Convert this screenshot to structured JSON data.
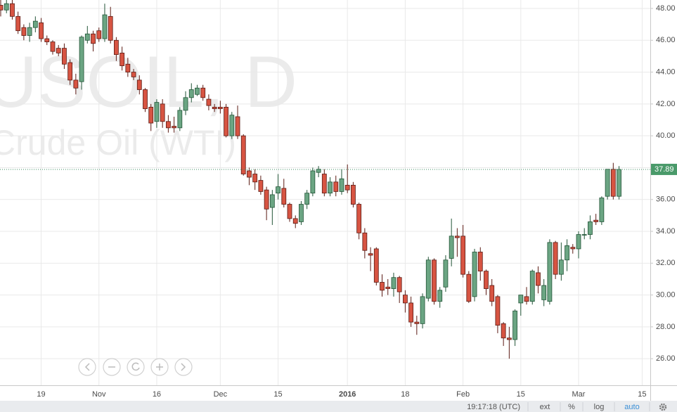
{
  "chart_data": {
    "type": "candlestick",
    "watermark_symbol": "USOIL, D",
    "watermark_name": "Crude Oil (WTI)",
    "categories": [
      null,
      null,
      null,
      null,
      null,
      null,
      null,
      "19",
      null,
      null,
      null,
      null,
      null,
      null,
      null,
      null,
      null,
      "Nov",
      null,
      null,
      null,
      null,
      null,
      null,
      null,
      null,
      null,
      "16",
      null,
      null,
      null,
      null,
      null,
      null,
      null,
      null,
      null,
      null,
      "Dec",
      null,
      null,
      null,
      null,
      null,
      null,
      null,
      null,
      null,
      "15",
      null,
      null,
      null,
      null,
      null,
      null,
      null,
      null,
      null,
      null,
      null,
      "2016",
      null,
      null,
      null,
      null,
      null,
      null,
      null,
      null,
      null,
      "18",
      null,
      null,
      null,
      null,
      null,
      null,
      null,
      null,
      null,
      "Feb",
      null,
      null,
      null,
      null,
      null,
      null,
      null,
      null,
      null,
      "15",
      null,
      null,
      null,
      null,
      null,
      null,
      null,
      null,
      null,
      "Mar",
      null,
      null,
      null,
      null,
      null,
      null,
      null,
      null,
      null,
      null,
      "15"
    ],
    "open": [
      48.2,
      47.9,
      48.3,
      47.5,
      46.8,
      46.3,
      46.8,
      47.1,
      46.1,
      45.9,
      45.5,
      45.5,
      44.6,
      43.5,
      43.4,
      46.0,
      46.4,
      46.6,
      46.1,
      47.5,
      46.0,
      45.2,
      44.5,
      44.0,
      43.5,
      42.9,
      41.8,
      40.9,
      42.0,
      40.9,
      40.6,
      40.5,
      41.6,
      42.4,
      42.6,
      43.0,
      42.3,
      41.8,
      41.8,
      41.8,
      40.0,
      41.2,
      40.0,
      37.8,
      37.6,
      37.2,
      36.6,
      35.5,
      36.4,
      36.7,
      35.7,
      34.8,
      34.6,
      35.7,
      36.4,
      37.7,
      37.6,
      36.4,
      37.1,
      36.5,
      36.9,
      36.9,
      35.7,
      33.9,
      32.6,
      32.9,
      30.8,
      30.5,
      30.4,
      31.1,
      30.0,
      29.5,
      28.3,
      28.2,
      29.8,
      32.2,
      29.6,
      30.5,
      32.3,
      33.7,
      33.7,
      31.3,
      29.9,
      32.7,
      31.5,
      30.6,
      29.9,
      28.2,
      27.3,
      27.2,
      29.5,
      29.9,
      29.6,
      31.4,
      29.7,
      29.6,
      33.3,
      31.3,
      32.2,
      33.0,
      32.9,
      33.8,
      33.8,
      34.7,
      34.6,
      36.2,
      37.9,
      36.2,
      null,
      null,
      null,
      null
    ],
    "high": [
      48.6,
      48.6,
      48.6,
      47.8,
      47.0,
      47.1,
      47.5,
      47.4,
      46.3,
      46.0,
      45.7,
      45.8,
      44.8,
      43.9,
      46.3,
      46.9,
      46.6,
      46.8,
      48.3,
      48.1,
      46.2,
      45.6,
      44.9,
      44.2,
      43.8,
      43.0,
      42.0,
      42.3,
      42.3,
      41.3,
      41.2,
      41.8,
      42.8,
      43.3,
      43.2,
      43.2,
      42.6,
      42.0,
      42.2,
      42.0,
      41.5,
      41.9,
      40.1,
      38.0,
      37.9,
      37.5,
      36.8,
      36.6,
      37.6,
      37.3,
      35.8,
      35.0,
      35.9,
      36.6,
      38.0,
      38.1,
      37.9,
      37.4,
      37.5,
      37.9,
      38.2,
      37.1,
      35.8,
      34.2,
      33.0,
      33.0,
      31.3,
      31.0,
      31.4,
      31.2,
      30.3,
      29.9,
      28.7,
      30.1,
      32.4,
      32.3,
      30.5,
      32.5,
      34.8,
      34.2,
      34.4,
      31.5,
      32.9,
      33.0,
      31.6,
      31.0,
      30.0,
      28.3,
      28.0,
      29.1,
      30.0,
      30.5,
      31.6,
      31.8,
      31.0,
      33.5,
      33.4,
      33.3,
      33.5,
      33.2,
      34.0,
      34.2,
      35.0,
      35.1,
      36.2,
      37.9,
      38.3,
      38.1,
      null,
      null,
      null,
      null
    ],
    "low": [
      47.5,
      47.7,
      47.3,
      46.4,
      46.0,
      45.9,
      46.5,
      45.9,
      45.7,
      45.1,
      45.0,
      44.2,
      43.2,
      42.6,
      42.9,
      45.8,
      45.3,
      45.9,
      45.9,
      45.8,
      44.7,
      44.1,
      43.7,
      43.5,
      42.6,
      41.5,
      40.3,
      40.5,
      40.5,
      40.2,
      40.2,
      40.3,
      41.3,
      42.1,
      42.5,
      42.2,
      41.6,
      41.5,
      41.4,
      39.9,
      39.8,
      39.8,
      37.5,
      36.9,
      36.6,
      36.3,
      34.7,
      34.4,
      36.0,
      35.5,
      34.6,
      34.2,
      34.4,
      35.4,
      36.2,
      37.4,
      36.2,
      36.2,
      36.2,
      36.3,
      36.4,
      35.5,
      33.5,
      32.3,
      31.5,
      30.6,
      29.9,
      30.0,
      29.9,
      29.5,
      28.9,
      28.0,
      27.5,
      27.9,
      29.6,
      29.4,
      29.2,
      30.2,
      31.8,
      32.4,
      31.1,
      29.5,
      29.6,
      30.9,
      30.0,
      29.3,
      27.6,
      26.8,
      26.0,
      26.8,
      28.7,
      29.4,
      29.4,
      30.1,
      29.3,
      29.4,
      31.0,
      30.9,
      31.5,
      32.6,
      32.3,
      33.5,
      33.5,
      34.4,
      34.4,
      36.0,
      36.0,
      36.0,
      null,
      null,
      null,
      null
    ],
    "close": [
      47.9,
      48.3,
      47.5,
      46.6,
      46.3,
      46.8,
      47.2,
      46.1,
      45.9,
      45.3,
      45.2,
      44.5,
      43.5,
      43.0,
      46.2,
      46.4,
      45.8,
      46.1,
      47.6,
      46.0,
      45.1,
      44.4,
      44.0,
      43.7,
      42.9,
      41.7,
      40.8,
      42.1,
      40.9,
      40.5,
      40.5,
      41.6,
      42.4,
      42.9,
      43.0,
      42.4,
      41.9,
      41.7,
      41.7,
      40.0,
      41.3,
      40.0,
      37.6,
      37.4,
      37.1,
      36.5,
      35.4,
      36.3,
      36.8,
      35.7,
      34.8,
      34.5,
      35.7,
      36.4,
      37.8,
      37.9,
      36.4,
      37.1,
      36.5,
      37.3,
      36.6,
      35.7,
      33.9,
      32.8,
      32.5,
      30.8,
      30.3,
      30.4,
      31.1,
      30.2,
      29.5,
      28.3,
      28.2,
      29.9,
      32.2,
      29.6,
      30.3,
      32.2,
      33.7,
      33.6,
      31.3,
      29.6,
      32.7,
      31.5,
      30.4,
      29.6,
      28.1,
      27.3,
      27.2,
      29.0,
      30.0,
      29.6,
      31.5,
      30.6,
      30.6,
      33.3,
      31.3,
      32.2,
      33.1,
      32.9,
      33.8,
      33.8,
      34.6,
      34.6,
      36.1,
      37.9,
      36.2,
      37.89,
      null,
      null,
      null,
      null
    ],
    "up_color": "#6ba583",
    "down_color": "#d75442",
    "ylim": [
      24.33,
      48.53
    ],
    "yticks": [
      {
        "value": 26,
        "label": "26.00"
      },
      {
        "value": 28,
        "label": "28.00"
      },
      {
        "value": 30,
        "label": "30.00"
      },
      {
        "value": 32,
        "label": "32.00"
      },
      {
        "value": 34,
        "label": "34.00"
      },
      {
        "value": 36,
        "label": "36.00"
      },
      {
        "value": 38,
        "label": "38.00"
      },
      {
        "value": 40,
        "label": "40.00"
      },
      {
        "value": 42,
        "label": "42.00"
      },
      {
        "value": 44,
        "label": "44.00"
      },
      {
        "value": 46,
        "label": "46.00"
      },
      {
        "value": 48,
        "label": "48.00"
      }
    ],
    "grid": true,
    "toolbar": {
      "clock": "19:17:18 (UTC)",
      "ext": "ext",
      "percent": "%",
      "log": "log",
      "auto": "auto"
    }
  }
}
